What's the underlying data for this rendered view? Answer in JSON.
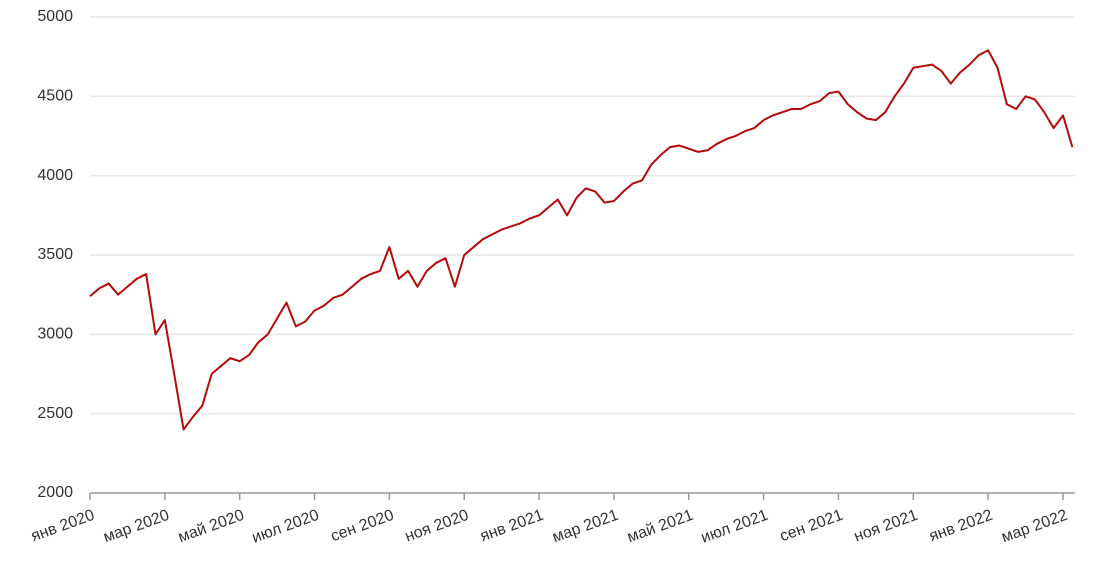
{
  "chart_data": {
    "type": "line",
    "categories": [
      "янв 2020",
      null,
      null,
      null,
      null,
      null,
      null,
      null,
      "мар 2020",
      null,
      null,
      null,
      null,
      null,
      null,
      null,
      "май 2020",
      null,
      null,
      null,
      null,
      null,
      null,
      null,
      "июл 2020",
      null,
      null,
      null,
      null,
      null,
      null,
      null,
      "сен 2020",
      null,
      null,
      null,
      null,
      null,
      null,
      null,
      "ноя 2020",
      null,
      null,
      null,
      null,
      null,
      null,
      null,
      "янв 2021",
      null,
      null,
      null,
      null,
      null,
      null,
      null,
      "мар 2021",
      null,
      null,
      null,
      null,
      null,
      null,
      null,
      "май 2021",
      null,
      null,
      null,
      null,
      null,
      null,
      null,
      "июл 2021",
      null,
      null,
      null,
      null,
      null,
      null,
      null,
      "сен 2021",
      null,
      null,
      null,
      null,
      null,
      null,
      null,
      "ноя 2021",
      null,
      null,
      null,
      null,
      null,
      null,
      null,
      "янв 2022",
      null,
      null,
      null,
      null,
      null,
      null,
      null,
      "мар 2022",
      null
    ],
    "series": [
      {
        "color": "#b50a0a",
        "values": [
          3240,
          3290,
          3320,
          3250,
          3300,
          3350,
          3380,
          3000,
          3090,
          2750,
          2400,
          2480,
          2550,
          2750,
          2800,
          2850,
          2830,
          2870,
          2950,
          3000,
          3100,
          3200,
          3050,
          3080,
          3150,
          3180,
          3230,
          3250,
          3300,
          3350,
          3380,
          3400,
          3550,
          3350,
          3400,
          3300,
          3400,
          3450,
          3480,
          3300,
          3500,
          3550,
          3600,
          3630,
          3660,
          3680,
          3700,
          3730,
          3750,
          3800,
          3850,
          3750,
          3860,
          3920,
          3900,
          3830,
          3840,
          3900,
          3950,
          3970,
          4070,
          4130,
          4180,
          4190,
          4170,
          4150,
          4160,
          4200,
          4230,
          4250,
          4280,
          4300,
          4350,
          4380,
          4400,
          4420,
          4420,
          4450,
          4470,
          4520,
          4530,
          4450,
          4400,
          4360,
          4350,
          4400,
          4500,
          4580,
          4680,
          4690,
          4700,
          4660,
          4580,
          4650,
          4700,
          4760,
          4790,
          4680,
          4450,
          4420,
          4500,
          4480,
          4400,
          4300,
          4380,
          4180
        ]
      }
    ],
    "ylim": [
      2000,
      5000
    ],
    "yticks": [
      2000,
      2500,
      3000,
      3500,
      4000,
      4500,
      5000
    ],
    "grid": true
  }
}
